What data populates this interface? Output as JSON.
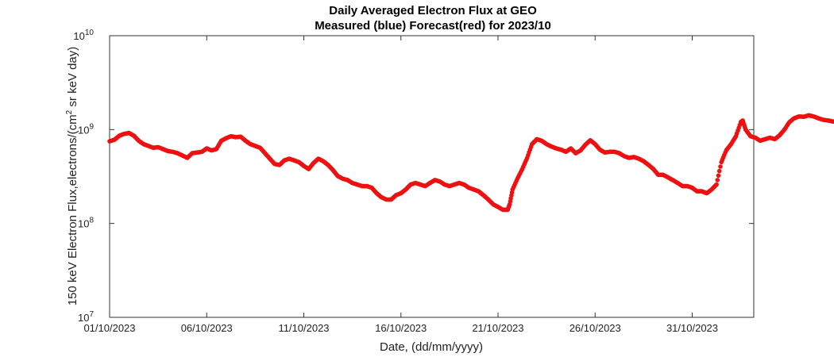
{
  "chart_data": {
    "type": "scatter",
    "title": "Daily Averaged Electron Flux at GEO",
    "subtitle": "Measured (blue) Forecast(red) for 2023/10",
    "xlabel": "Date, (dd/mm/yyyy)",
    "ylabel_main": "150 keV Electron Flux,electrons/(cm",
    "ylabel_sup": "2",
    "ylabel_tail": " sr keV day)",
    "x_ticks": [
      "01/10/2023",
      "06/10/2023",
      "11/10/2023",
      "16/10/2023",
      "21/10/2023",
      "26/10/2023",
      "31/10/2023"
    ],
    "x_tick_days": [
      1,
      6,
      11,
      16,
      21,
      26,
      31
    ],
    "xlim_days": [
      1,
      36.5
    ],
    "y_ticks": [
      {
        "base": "10",
        "exp": "7",
        "value": 10000000
      },
      {
        "base": "10",
        "exp": "8",
        "value": 100000000
      },
      {
        "base": "10",
        "exp": "9",
        "value": 1000000000
      },
      {
        "base": "10",
        "exp": "10",
        "value": 10000000000
      }
    ],
    "ylim": [
      10000000,
      10000000000
    ],
    "y_scale": "log",
    "grid": false,
    "series": [
      {
        "color": "#ee1111",
        "points": [
          [
            1.0,
            750000000.0
          ],
          [
            1.25,
            780000000.0
          ],
          [
            1.5,
            860000000.0
          ],
          [
            1.75,
            900000000.0
          ],
          [
            2.0,
            920000000.0
          ],
          [
            2.25,
            860000000.0
          ],
          [
            2.5,
            760000000.0
          ],
          [
            2.75,
            700000000.0
          ],
          [
            3.0,
            670000000.0
          ],
          [
            3.25,
            640000000.0
          ],
          [
            3.5,
            650000000.0
          ],
          [
            3.75,
            620000000.0
          ],
          [
            4.0,
            590000000.0
          ],
          [
            4.25,
            580000000.0
          ],
          [
            4.5,
            560000000.0
          ],
          [
            4.75,
            530000000.0
          ],
          [
            5.0,
            500000000.0
          ],
          [
            5.25,
            560000000.0
          ],
          [
            5.5,
            570000000.0
          ],
          [
            5.75,
            580000000.0
          ],
          [
            6.0,
            630000000.0
          ],
          [
            6.25,
            600000000.0
          ],
          [
            6.5,
            620000000.0
          ],
          [
            6.75,
            760000000.0
          ],
          [
            7.0,
            810000000.0
          ],
          [
            7.25,
            850000000.0
          ],
          [
            7.5,
            830000000.0
          ],
          [
            7.75,
            840000000.0
          ],
          [
            8.0,
            760000000.0
          ],
          [
            8.25,
            700000000.0
          ],
          [
            8.5,
            670000000.0
          ],
          [
            8.75,
            640000000.0
          ],
          [
            9.0,
            560000000.0
          ],
          [
            9.25,
            490000000.0
          ],
          [
            9.5,
            430000000.0
          ],
          [
            9.75,
            420000000.0
          ],
          [
            10.0,
            470000000.0
          ],
          [
            10.25,
            490000000.0
          ],
          [
            10.5,
            470000000.0
          ],
          [
            10.75,
            450000000.0
          ],
          [
            11.0,
            410000000.0
          ],
          [
            11.25,
            380000000.0
          ],
          [
            11.5,
            440000000.0
          ],
          [
            11.75,
            490000000.0
          ],
          [
            12.0,
            460000000.0
          ],
          [
            12.25,
            420000000.0
          ],
          [
            12.5,
            370000000.0
          ],
          [
            12.75,
            320000000.0
          ],
          [
            13.0,
            300000000.0
          ],
          [
            13.25,
            290000000.0
          ],
          [
            13.5,
            270000000.0
          ],
          [
            13.75,
            260000000.0
          ],
          [
            14.0,
            250000000.0
          ],
          [
            14.25,
            250000000.0
          ],
          [
            14.5,
            240000000.0
          ],
          [
            14.75,
            210000000.0
          ],
          [
            15.0,
            190000000.0
          ],
          [
            15.25,
            180000000.0
          ],
          [
            15.5,
            180000000.0
          ],
          [
            15.75,
            200000000.0
          ],
          [
            16.0,
            210000000.0
          ],
          [
            16.25,
            230000000.0
          ],
          [
            16.5,
            260000000.0
          ],
          [
            16.75,
            270000000.0
          ],
          [
            17.0,
            260000000.0
          ],
          [
            17.25,
            250000000.0
          ],
          [
            17.5,
            270000000.0
          ],
          [
            17.75,
            290000000.0
          ],
          [
            18.0,
            280000000.0
          ],
          [
            18.25,
            260000000.0
          ],
          [
            18.5,
            250000000.0
          ],
          [
            18.75,
            260000000.0
          ],
          [
            19.0,
            270000000.0
          ],
          [
            19.25,
            260000000.0
          ],
          [
            19.5,
            240000000.0
          ],
          [
            19.75,
            230000000.0
          ],
          [
            20.0,
            220000000.0
          ],
          [
            20.25,
            200000000.0
          ],
          [
            20.5,
            180000000.0
          ],
          [
            20.75,
            160000000.0
          ],
          [
            21.0,
            150000000.0
          ],
          [
            21.25,
            140000000.0
          ],
          [
            21.5,
            140000000.0
          ],
          [
            21.6,
            160000000.0
          ],
          [
            21.75,
            230000000.0
          ],
          [
            22.0,
            300000000.0
          ],
          [
            22.25,
            380000000.0
          ],
          [
            22.5,
            500000000.0
          ],
          [
            22.75,
            700000000.0
          ],
          [
            23.0,
            790000000.0
          ],
          [
            23.25,
            760000000.0
          ],
          [
            23.5,
            700000000.0
          ],
          [
            23.75,
            660000000.0
          ],
          [
            24.0,
            630000000.0
          ],
          [
            24.25,
            610000000.0
          ],
          [
            24.5,
            580000000.0
          ],
          [
            24.75,
            630000000.0
          ],
          [
            25.0,
            560000000.0
          ],
          [
            25.25,
            600000000.0
          ],
          [
            25.5,
            690000000.0
          ],
          [
            25.75,
            770000000.0
          ],
          [
            26.0,
            700000000.0
          ],
          [
            26.25,
            610000000.0
          ],
          [
            26.5,
            570000000.0
          ],
          [
            26.75,
            580000000.0
          ],
          [
            27.0,
            580000000.0
          ],
          [
            27.25,
            560000000.0
          ],
          [
            27.5,
            520000000.0
          ],
          [
            27.75,
            500000000.0
          ],
          [
            28.0,
            510000000.0
          ],
          [
            28.25,
            490000000.0
          ],
          [
            28.5,
            460000000.0
          ],
          [
            28.75,
            420000000.0
          ],
          [
            29.0,
            380000000.0
          ],
          [
            29.25,
            330000000.0
          ],
          [
            29.5,
            330000000.0
          ],
          [
            29.75,
            310000000.0
          ],
          [
            30.0,
            290000000.0
          ],
          [
            30.25,
            270000000.0
          ],
          [
            30.5,
            250000000.0
          ],
          [
            30.75,
            250000000.0
          ],
          [
            31.0,
            240000000.0
          ],
          [
            31.25,
            220000000.0
          ],
          [
            31.5,
            220000000.0
          ],
          [
            31.75,
            210000000.0
          ],
          [
            32.0,
            230000000.0
          ],
          [
            32.25,
            260000000.0
          ],
          [
            32.5,
            450000000.0
          ],
          [
            32.75,
            600000000.0
          ],
          [
            33.0,
            700000000.0
          ],
          [
            33.25,
            850000000.0
          ],
          [
            33.5,
            1200000000.0
          ],
          [
            33.6,
            1250000000.0
          ],
          [
            33.75,
            1000000000.0
          ],
          [
            34.0,
            850000000.0
          ],
          [
            34.25,
            820000000.0
          ],
          [
            34.5,
            760000000.0
          ],
          [
            34.75,
            790000000.0
          ],
          [
            35.0,
            820000000.0
          ],
          [
            35.25,
            790000000.0
          ],
          [
            35.5,
            870000000.0
          ],
          [
            35.75,
            1000000000.0
          ],
          [
            36.0,
            1200000000.0
          ],
          [
            36.25,
            1320000000.0
          ],
          [
            36.5,
            1380000000.0
          ],
          [
            36.75,
            1370000000.0
          ],
          [
            37.0,
            1420000000.0
          ],
          [
            37.25,
            1380000000.0
          ],
          [
            37.5,
            1320000000.0
          ],
          [
            37.75,
            1270000000.0
          ],
          [
            38.0,
            1250000000.0
          ],
          [
            38.25,
            1220000000.0
          ],
          [
            38.5,
            1200000000.0
          ],
          [
            38.75,
            1140000000.0
          ],
          [
            39.0,
            1100000000.0
          ]
        ]
      }
    ]
  }
}
